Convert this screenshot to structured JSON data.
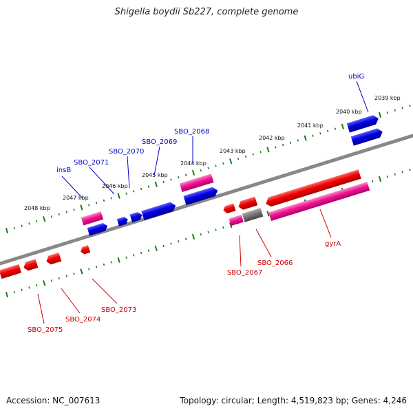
{
  "title": "Shigella boydii Sb227, complete genome",
  "footer": {
    "accession": "Accession: NC_007613",
    "topology": "Topology: circular; Length: 4,519,823 bp; Genes: 4,246"
  },
  "colors": {
    "forward_gene": "#0000dd",
    "reverse_gene": "#ee0000",
    "forward_rna": "#ee1493",
    "pseudo": "#777777",
    "backbone": "#888888",
    "ticks": "#1a7a1a",
    "forward_label": "#0000cc",
    "reverse_label": "#cc0000"
  },
  "ticks_upper": [
    "2048 kbp",
    "2047 kbp",
    "2046 kbp",
    "2045 kbp",
    "2044 kbp",
    "2043 kbp",
    "2042 kbp",
    "2041 kbp",
    "2040 kbp",
    "2039 kbp"
  ],
  "labels_forward": [
    "insB",
    "SBO_2071",
    "SBO_2070",
    "SBO_2069",
    "SBO_2068",
    "ubiG"
  ],
  "labels_reverse": [
    "SBO_2075",
    "SBO_2074",
    "SBO_2073",
    "SBO_2067",
    "SBO_2066",
    "gyrA"
  ]
}
